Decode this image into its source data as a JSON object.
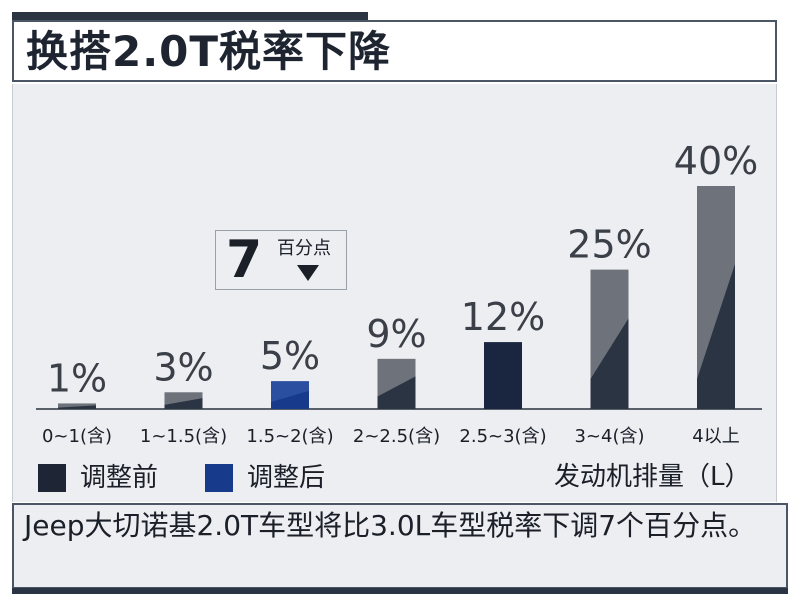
{
  "header": {
    "title": "换搭2.0T税率下降"
  },
  "chart_data": {
    "type": "bar",
    "categories": [
      "0~1(含)",
      "1~1.5(含)",
      "1.5~2(含)",
      "2~2.5(含)",
      "2.5~3(含)",
      "3~4(含)",
      "4以上"
    ],
    "values": [
      1,
      3,
      5,
      9,
      12,
      25,
      40
    ],
    "value_labels": [
      "1%",
      "3%",
      "5%",
      "9%",
      "12%",
      "25%",
      "40%"
    ],
    "bar_groups": [
      "调整前",
      "调整前",
      "调整后",
      "调整前",
      "调整前",
      "调整前",
      "调整前"
    ],
    "ylim": [
      0,
      40
    ],
    "grid": false,
    "legend_placement": "bottom-left",
    "xlabel": "发动机排量（L）",
    "legend": [
      {
        "name": "调整前",
        "color": "#2b3442"
      },
      {
        "name": "调整后",
        "color": "#173a8a"
      }
    ],
    "annotation": {
      "number": "7",
      "text": "百分点"
    }
  },
  "colors": {
    "bar_dark": "#2b3442",
    "bar_light": "#6e737b",
    "bar_blue": "#173a8a",
    "bar_navy": "#1a2540",
    "axis": "#5a606a"
  },
  "caption": {
    "text": "Jeep大切诺基2.0T车型将比3.0L车型税率下调7个百分点。"
  }
}
